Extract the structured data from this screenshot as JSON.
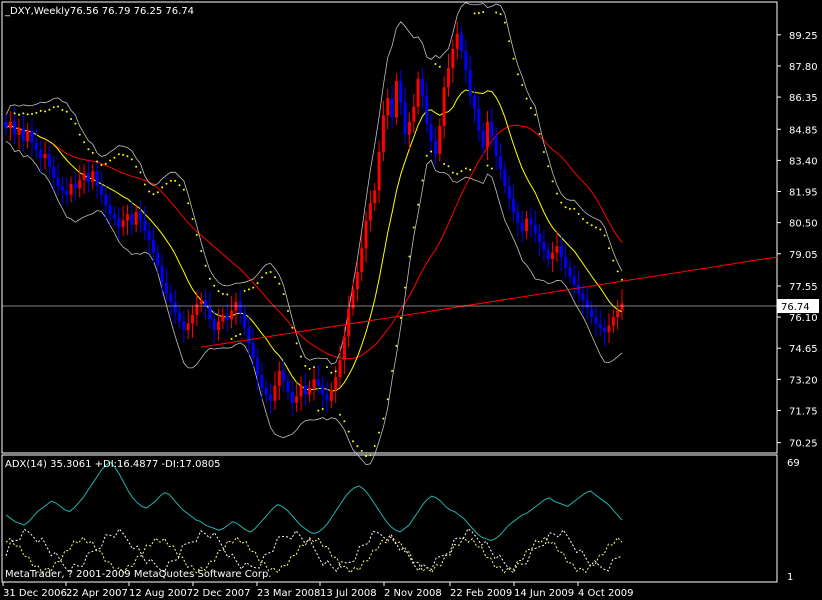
{
  "header": {
    "symbol_label": "_DXY,Weekly",
    "ohlc_label": "76.56 76.79 76.25 76.74"
  },
  "indicator": {
    "label": "ADX(14) 35.3061 +DI:16.4877 -DI:17.0805",
    "scale_max": "69",
    "scale_min": "1"
  },
  "copyright": "MetaTrader, ? 2001-2009 MetaQuotes Software Corp.",
  "current_price_label": "76.74",
  "colors": {
    "background": "#000000",
    "bull_candle": "#ff0000",
    "bear_candle": "#0000ff",
    "bollinger": "#c0c0c0",
    "ma_fast": "#ffff00",
    "ma_slow": "#ff0000",
    "trendline": "#ff0000",
    "sar": "#ffff00",
    "adx": "#20b2aa",
    "plus_di": "#ffffff",
    "minus_di": "#ffff80",
    "axis_text": "#ffffff",
    "grid_line": "#ffffff"
  },
  "chart_data": {
    "type": "candlestick",
    "price_axis": {
      "ticks": [
        "89.25",
        "87.80",
        "86.35",
        "84.85",
        "83.40",
        "81.95",
        "80.50",
        "79.05",
        "77.55",
        "76.10",
        "74.65",
        "73.20",
        "71.75",
        "70.25"
      ],
      "ylim": [
        70.0,
        90.5
      ]
    },
    "time_axis": {
      "labels": [
        "31 Dec 2006",
        "22 Apr 2007",
        "12 Aug 2007",
        "2 Dec 2007",
        "23 Mar 2008",
        "13 Jul 2008",
        "2 Nov 2008",
        "22 Feb 2009",
        "14 Jun 2009",
        "4 Oct 2009"
      ]
    },
    "weekly_closes": [
      84.9,
      85.2,
      84.6,
      84.9,
      84.3,
      84.8,
      84.2,
      83.9,
      83.5,
      83.7,
      83.1,
      82.6,
      82.2,
      82.0,
      81.8,
      82.3,
      82.1,
      82.5,
      82.8,
      82.4,
      82.9,
      82.2,
      81.8,
      81.3,
      80.9,
      80.7,
      80.3,
      80.6,
      80.9,
      80.4,
      81.0,
      80.6,
      80.1,
      79.7,
      79.1,
      78.5,
      77.7,
      77.2,
      76.8,
      76.3,
      75.9,
      75.5,
      75.8,
      76.2,
      76.7,
      76.9,
      76.6,
      76.0,
      75.5,
      75.9,
      76.2,
      76.0,
      76.4,
      76.8,
      76.3,
      75.6,
      74.9,
      74.2,
      73.4,
      72.8,
      72.5,
      72.2,
      72.9,
      73.6,
      73.1,
      72.6,
      72.1,
      72.4,
      72.9,
      72.5,
      72.8,
      73.2,
      72.9,
      72.5,
      72.2,
      72.7,
      73.3,
      74.1,
      75.2,
      76.5,
      77.4,
      78.2,
      79.3,
      80.6,
      81.4,
      82.0,
      83.8,
      85.5,
      86.3,
      85.4,
      87.1,
      86.1,
      84.6,
      85.2,
      85.9,
      87.2,
      86.4,
      85.1,
      84.3,
      83.7,
      85.0,
      86.8,
      87.7,
      88.6,
      89.3,
      88.5,
      87.6,
      86.4,
      85.8,
      84.8,
      84.0,
      85.2,
      84.5,
      83.6,
      83.0,
      82.2,
      81.6,
      81.0,
      80.5,
      80.1,
      80.7,
      80.4,
      80.0,
      79.6,
      79.2,
      78.8,
      79.1,
      79.4,
      78.9,
      78.4,
      78.0,
      77.6,
      77.2,
      76.9,
      76.5,
      76.1,
      75.8,
      75.6,
      75.4,
      75.7,
      76.1,
      76.4,
      76.74
    ],
    "moving_average_slow_note": "red curve",
    "adx_series": {
      "adx": [
        38,
        36,
        34,
        33,
        32,
        34,
        37,
        40,
        42,
        44,
        46,
        45,
        43,
        41,
        40,
        42,
        45,
        48,
        52,
        56,
        60,
        64,
        67,
        69,
        66,
        62,
        57,
        52,
        48,
        45,
        43,
        42,
        44,
        46,
        49,
        51,
        50,
        47,
        44,
        41,
        39,
        37,
        35,
        34,
        32,
        31,
        30,
        29,
        30,
        32,
        34,
        33,
        31,
        29,
        28,
        30,
        33,
        36,
        39,
        42,
        44,
        43,
        41,
        38,
        35,
        32,
        30,
        28,
        27,
        28,
        30,
        33,
        37,
        41,
        45,
        49,
        52,
        54,
        55,
        53,
        50,
        46,
        42,
        38,
        34,
        31,
        29,
        28,
        30,
        32,
        36,
        40,
        44,
        47,
        49,
        48,
        46,
        43,
        41,
        40,
        38,
        36,
        33,
        30,
        27,
        25,
        24,
        23,
        24,
        26,
        29,
        32,
        34,
        36,
        38,
        39,
        41,
        43,
        45,
        47,
        48,
        46,
        45,
        44,
        43,
        45,
        47,
        49,
        51,
        52,
        50,
        48,
        46,
        44,
        41,
        38,
        35
      ]
    }
  }
}
